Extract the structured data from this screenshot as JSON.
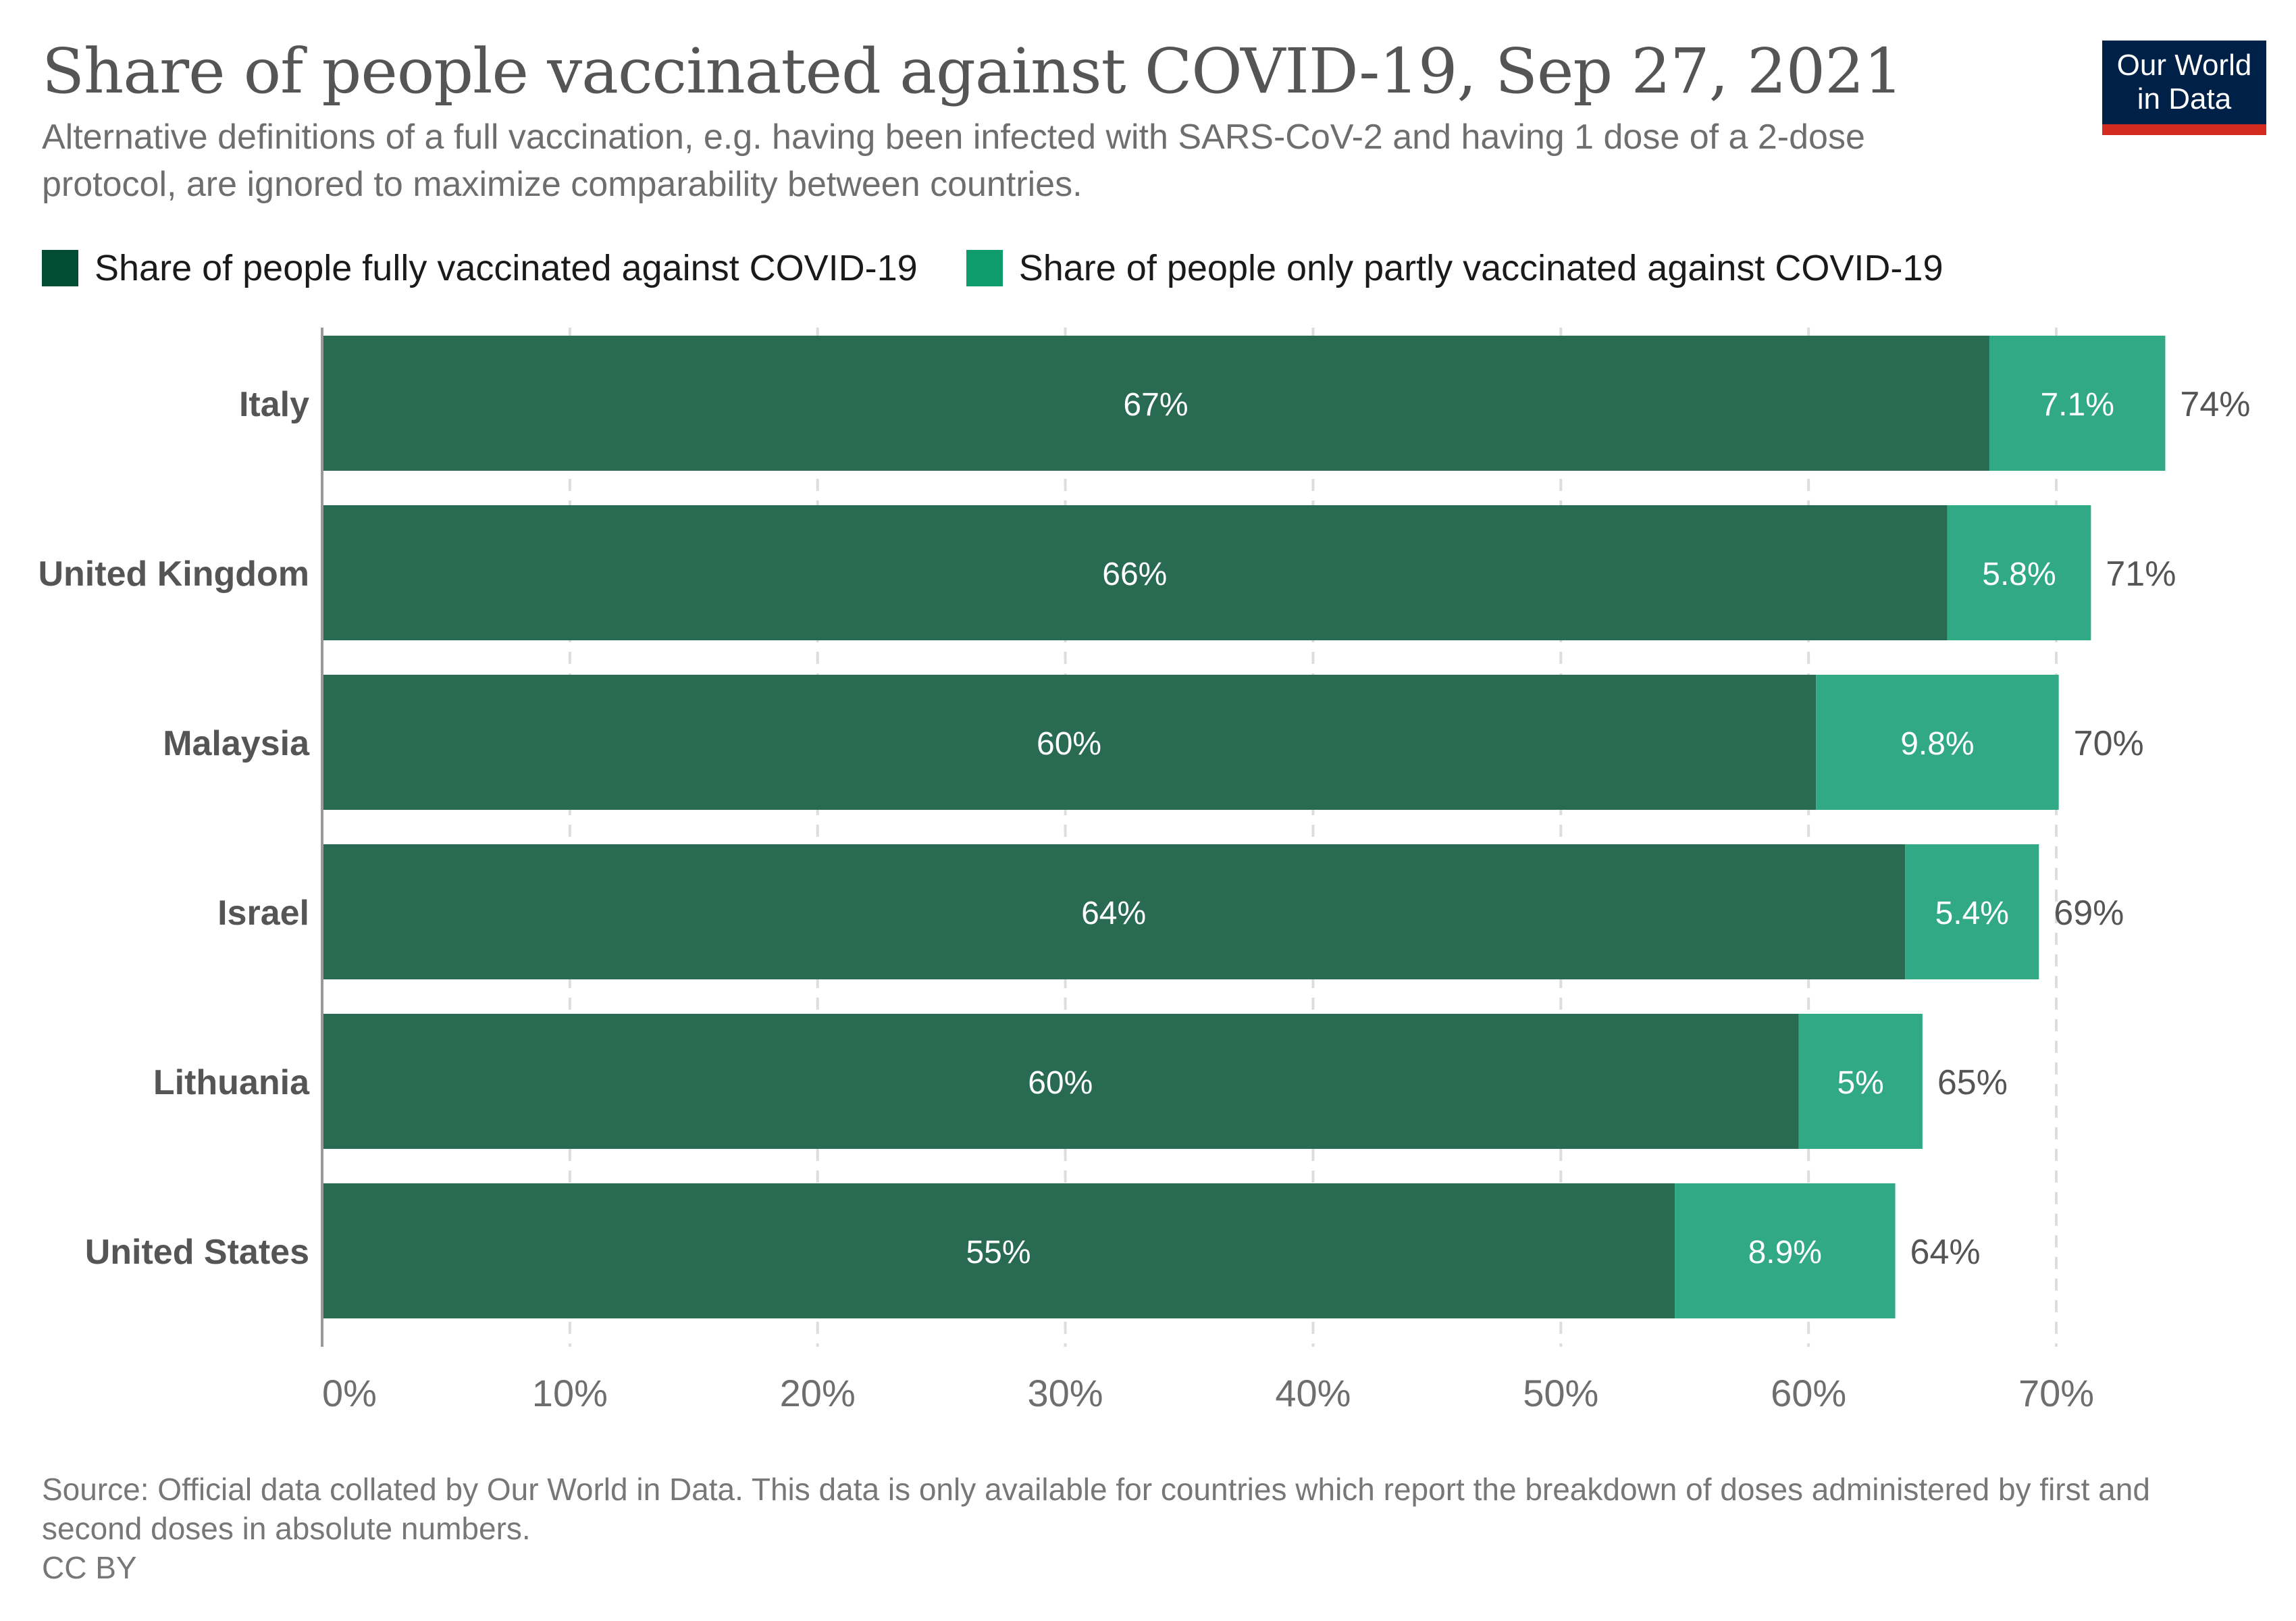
{
  "header": {
    "title": "Share of people vaccinated against COVID-19, Sep 27, 2021",
    "subtitle": "Alternative definitions of a full vaccination, e.g. having been infected with SARS-CoV-2 and having 1 dose of a 2-dose protocol, are ignored to maximize comparability between countries."
  },
  "logo": {
    "line1": "Our World",
    "line2": "in Data",
    "bg_color": "#002147",
    "accent_color": "#d42b21"
  },
  "legend": [
    {
      "label": "Share of people fully vaccinated against COVID-19",
      "color": "#024c34"
    },
    {
      "label": "Share of people only partly vaccinated against COVID-19",
      "color": "#0e9c6c"
    }
  ],
  "footer": {
    "source": "Source: Official data collated by Our World in Data. This data is only available for countries which report the breakdown of doses administered by first and second doses in absolute numbers.",
    "license": "CC BY"
  },
  "chart_data": {
    "type": "bar",
    "orientation": "horizontal",
    "stacked": true,
    "title": "Share of people vaccinated against COVID-19, Sep 27, 2021",
    "categories": [
      "Italy",
      "United Kingdom",
      "Malaysia",
      "Israel",
      "Lithuania",
      "United States"
    ],
    "series": [
      {
        "name": "Share of people fully vaccinated against COVID-19",
        "color": "#296a52",
        "values": [
          67.3,
          65.6,
          60.3,
          63.9,
          59.6,
          54.6
        ],
        "labels": [
          "67%",
          "66%",
          "60%",
          "64%",
          "60%",
          "55%"
        ]
      },
      {
        "name": "Share of people only partly vaccinated against COVID-19",
        "color": "#31a985",
        "values": [
          7.1,
          5.8,
          9.8,
          5.4,
          5.0,
          8.9
        ],
        "labels": [
          "7.1%",
          "5.8%",
          "9.8%",
          "5.4%",
          "5%",
          "8.9%"
        ]
      }
    ],
    "totals": [
      74.4,
      71.4,
      70.1,
      69.3,
      64.6,
      63.5
    ],
    "total_labels": [
      "74%",
      "71%",
      "70%",
      "69%",
      "65%",
      "64%"
    ],
    "xlabel": "",
    "ylabel": "",
    "xlim": [
      0,
      70
    ],
    "xticks": [
      0,
      10,
      20,
      30,
      40,
      50,
      60,
      70
    ],
    "xtick_labels": [
      "0%",
      "10%",
      "20%",
      "30%",
      "40%",
      "50%",
      "60%",
      "70%"
    ],
    "grid": "vertical dashed",
    "legend_position": "top-left"
  }
}
